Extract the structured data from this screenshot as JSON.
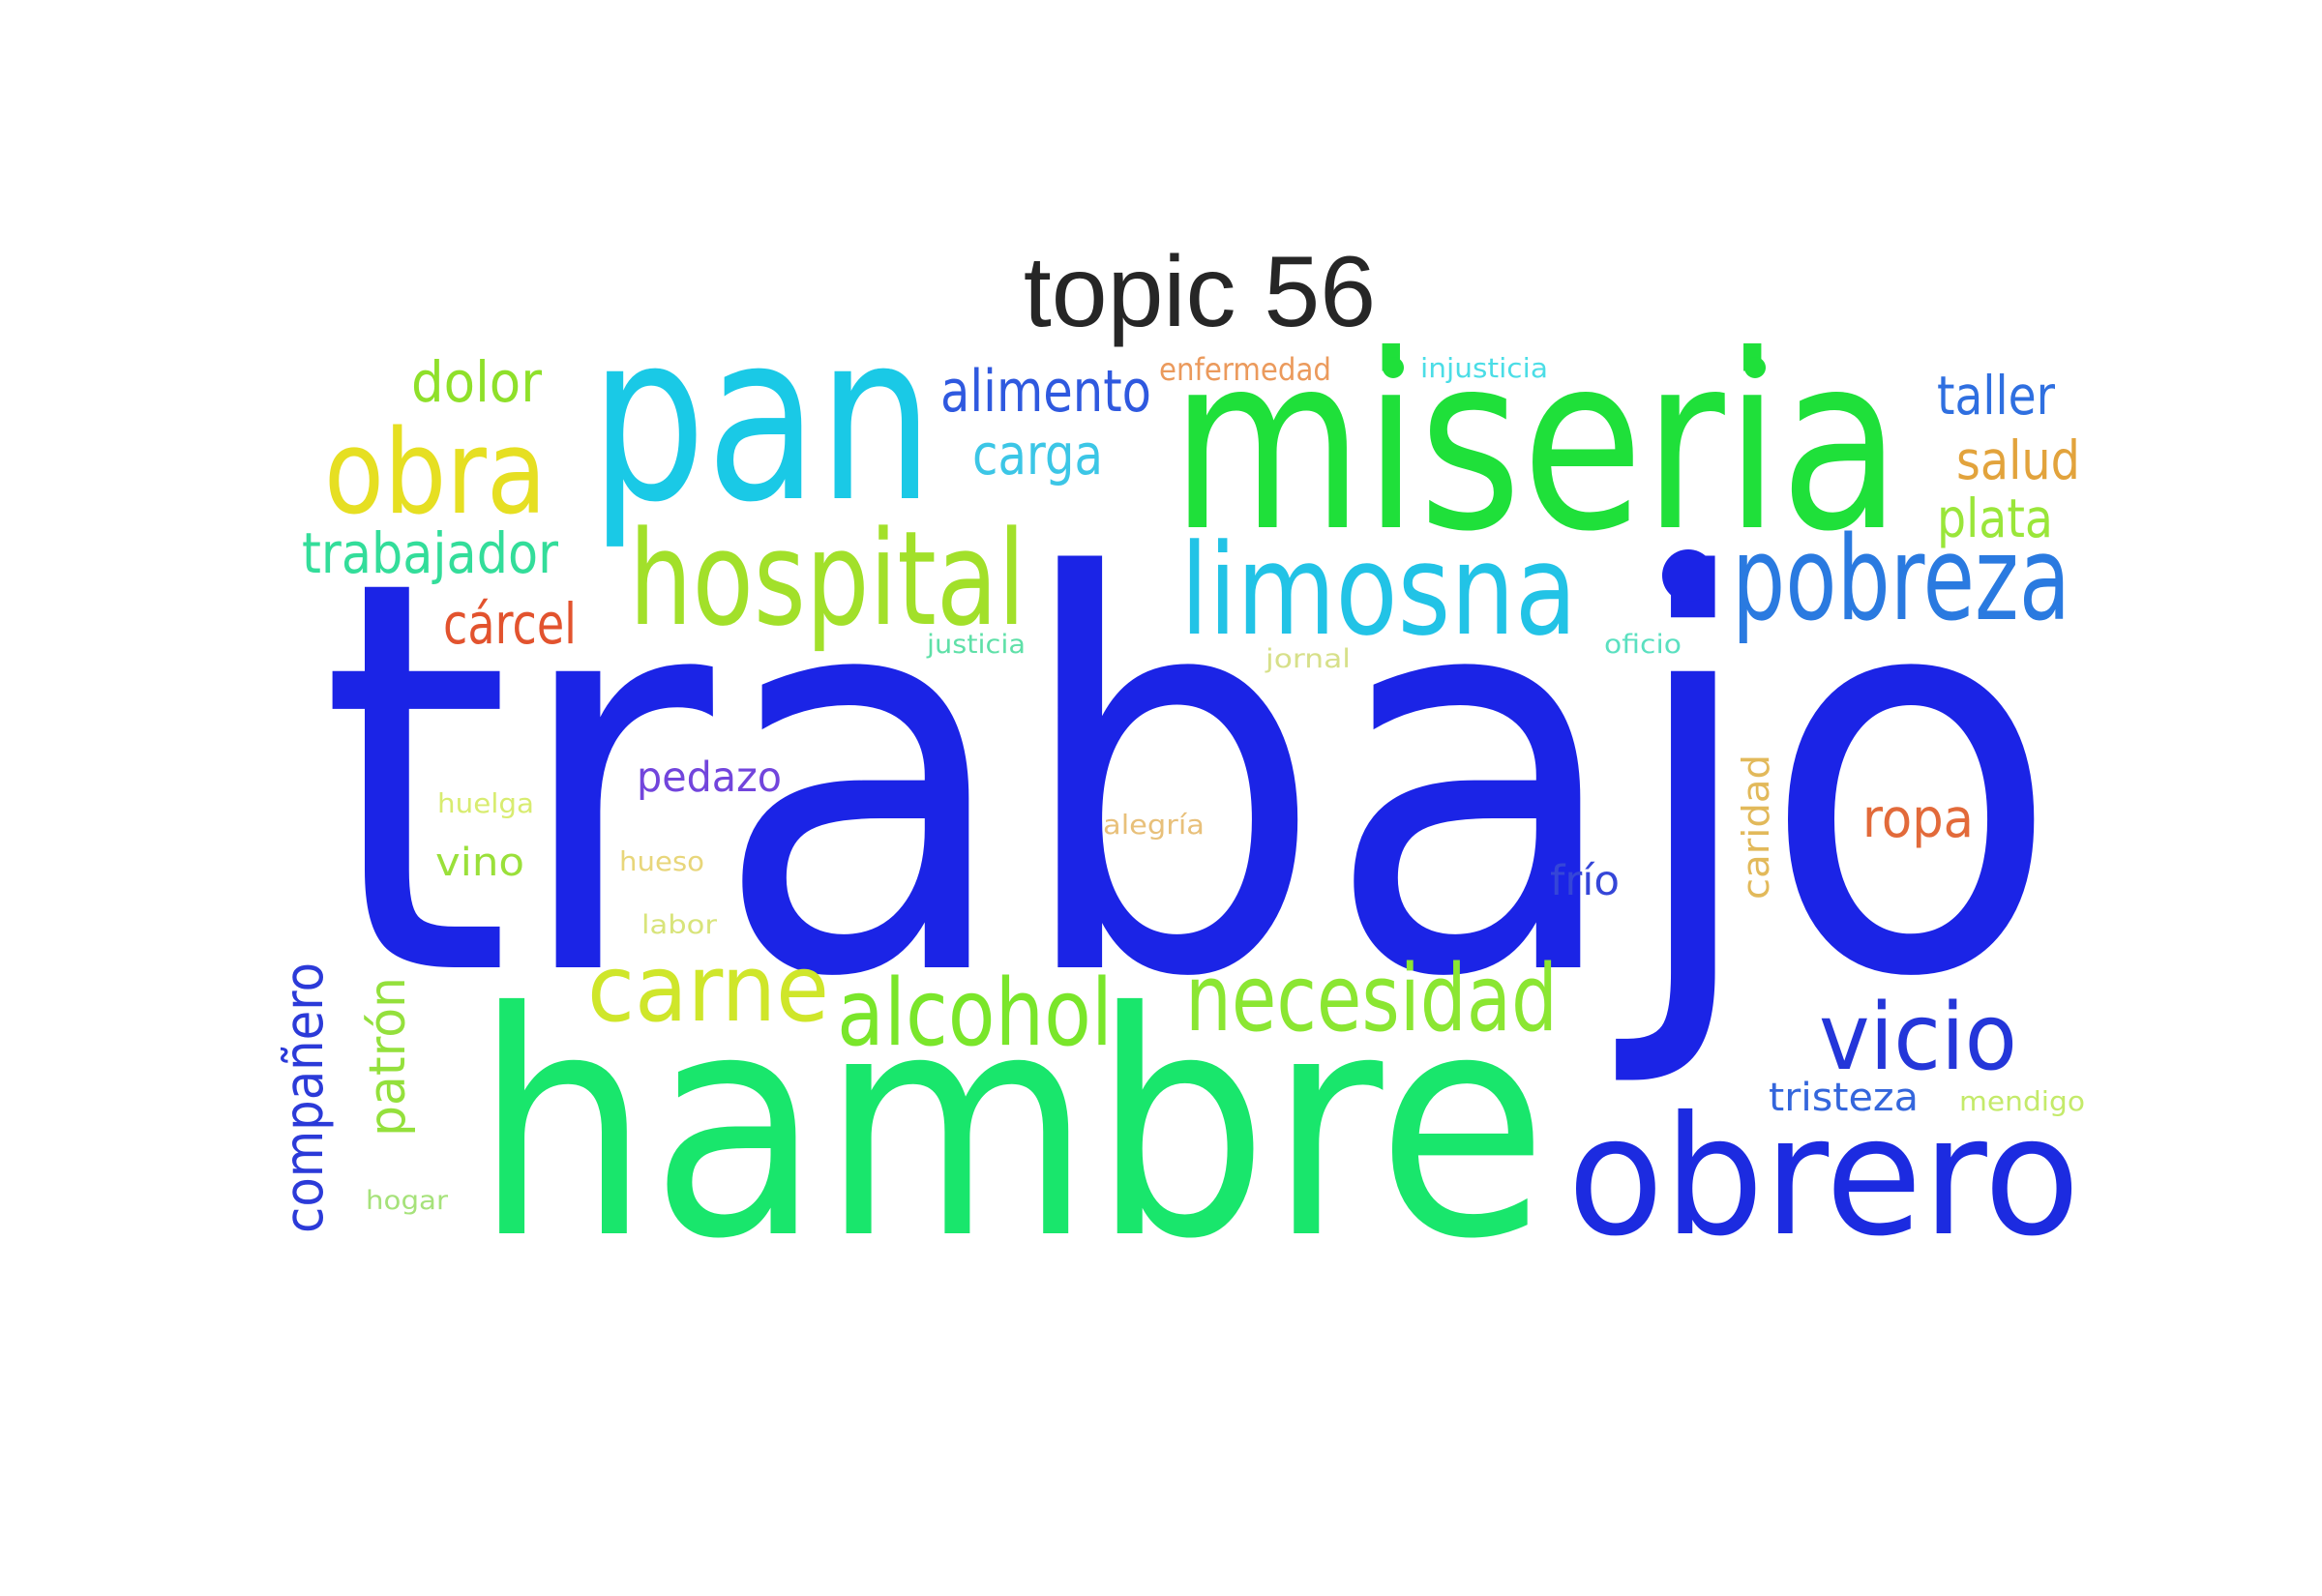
{
  "title": "topic 56",
  "words": [
    {
      "text": "trabajo",
      "color": "#1b24e6"
    },
    {
      "text": "hambre",
      "color": "#19e66c"
    },
    {
      "text": "miseria",
      "color": "#1fe03a"
    },
    {
      "text": "pan",
      "color": "#1ac9e6"
    },
    {
      "text": "obrero",
      "color": "#1c2be0"
    },
    {
      "text": "limosna",
      "color": "#22c3e6"
    },
    {
      "text": "pobreza",
      "color": "#2a7ae0"
    },
    {
      "text": "hospital",
      "color": "#a2e02a"
    },
    {
      "text": "obra",
      "color": "#e6df22"
    },
    {
      "text": "necesidad",
      "color": "#8be632"
    },
    {
      "text": "alcohol",
      "color": "#7ae62a"
    },
    {
      "text": "carne",
      "color": "#cfe62a"
    },
    {
      "text": "vicio",
      "color": "#2436d9"
    },
    {
      "text": "alimento",
      "color": "#2f59df"
    },
    {
      "text": "dolor",
      "color": "#8fe02a"
    },
    {
      "text": "carga",
      "color": "#3cc6e6"
    },
    {
      "text": "trabajador",
      "color": "#33dd9a"
    },
    {
      "text": "cárcel",
      "color": "#e2532e"
    },
    {
      "text": "taller",
      "color": "#2f6fe0"
    },
    {
      "text": "salud",
      "color": "#e2a33c"
    },
    {
      "text": "plata",
      "color": "#9ae63a"
    },
    {
      "text": "compañero",
      "color": "#2b3ad8"
    },
    {
      "text": "patrón",
      "color": "#94e03c"
    },
    {
      "text": "ropa",
      "color": "#e26a3a"
    },
    {
      "text": "pedazo",
      "color": "#7245dc"
    },
    {
      "text": "frío",
      "color": "#3546d8"
    },
    {
      "text": "tristeza",
      "color": "#3466dc"
    },
    {
      "text": "vino",
      "color": "#9ae03a"
    },
    {
      "text": "caridad",
      "color": "#e2b95a"
    },
    {
      "text": "enfermedad",
      "color": "#eb9a5c"
    },
    {
      "text": "injusticia",
      "color": "#4bdde6"
    },
    {
      "text": "mendigo",
      "color": "#c4ea6a"
    },
    {
      "text": "huelga",
      "color": "#d8ec70"
    },
    {
      "text": "alegría",
      "color": "#e8c07a"
    },
    {
      "text": "hueso",
      "color": "#e8d67a"
    },
    {
      "text": "labor",
      "color": "#d8e47a"
    },
    {
      "text": "hogar",
      "color": "#a6e27a"
    },
    {
      "text": "justicia",
      "color": "#5fe0a8"
    },
    {
      "text": "jornal",
      "color": "#d7e08a"
    },
    {
      "text": "oficio",
      "color": "#5ae0c0"
    }
  ]
}
